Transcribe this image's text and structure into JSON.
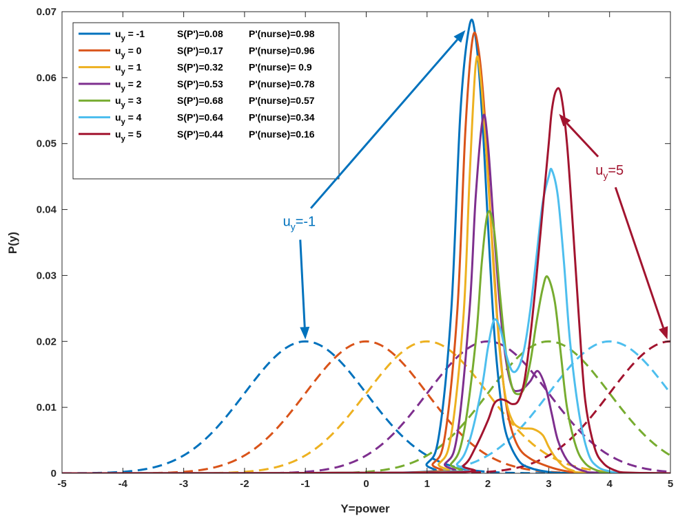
{
  "chart_data": {
    "type": "line",
    "xlabel": "Y=power",
    "ylabel": "P(y)",
    "xlim": [
      -5,
      5
    ],
    "ylim": [
      0,
      0.07
    ],
    "xticks": [
      "-5",
      "-4",
      "-3",
      "-2",
      "-1",
      "0",
      "1",
      "2",
      "3",
      "4",
      "5"
    ],
    "yticks": [
      "0",
      "0.01",
      "0.02",
      "0.03",
      "0.04",
      "0.05",
      "0.06",
      "0.07"
    ],
    "legend_placement": "top-left",
    "series": [
      {
        "name": "u_y = -1",
        "u": -1,
        "sp": "S(P')=0.08",
        "pn": "P'(nurse)=0.98",
        "color": "#0072BD",
        "x": [
          -5,
          0.6,
          1.0,
          1.2,
          1.4,
          1.55,
          1.7,
          1.8,
          1.9,
          2.0,
          2.1,
          2.2,
          2.3,
          2.5,
          2.7,
          3.0,
          3.3,
          5
        ],
        "y": [
          0,
          0.0001,
          0.0015,
          0.006,
          0.025,
          0.055,
          0.068,
          0.066,
          0.055,
          0.038,
          0.022,
          0.012,
          0.006,
          0.002,
          0.0008,
          0.0002,
          5e-05,
          0
        ]
      },
      {
        "name": "u_y = 0",
        "u": 0,
        "sp": "S(P')=0.17",
        "pn": "P'(nurse)=0.96",
        "color": "#D95319",
        "x": [
          -5,
          0.7,
          1.1,
          1.3,
          1.5,
          1.63,
          1.75,
          1.85,
          1.95,
          2.05,
          2.15,
          2.25,
          2.35,
          2.5,
          2.7,
          3.0,
          3.3,
          3.6,
          5
        ],
        "y": [
          0,
          0.0001,
          0.0015,
          0.006,
          0.025,
          0.052,
          0.066,
          0.064,
          0.054,
          0.038,
          0.024,
          0.014,
          0.008,
          0.004,
          0.0022,
          0.001,
          0.0003,
          0.0001,
          0
        ]
      },
      {
        "name": "u_y = 1",
        "u": 1,
        "sp": "S(P')=0.32",
        "pn": "P'(nurse)= 0.9",
        "color": "#EDB120",
        "x": [
          -5,
          0.8,
          1.2,
          1.4,
          1.6,
          1.7,
          1.8,
          1.88,
          2.0,
          2.1,
          2.2,
          2.3,
          2.4,
          2.5,
          2.6,
          2.75,
          2.9,
          3.0,
          3.1,
          3.25,
          3.4,
          3.6,
          5
        ],
        "y": [
          0,
          0.0001,
          0.0015,
          0.006,
          0.024,
          0.045,
          0.062,
          0.06,
          0.045,
          0.03,
          0.018,
          0.011,
          0.008,
          0.007,
          0.0068,
          0.0067,
          0.0058,
          0.004,
          0.0025,
          0.001,
          0.0004,
          0.0001,
          0
        ]
      },
      {
        "name": "u_y = 2",
        "u": 2,
        "sp": "S(P')=0.53",
        "pn": "P'(nurse)=0.78",
        "color": "#7E2F8E",
        "x": [
          -5,
          0.9,
          1.3,
          1.5,
          1.7,
          1.8,
          1.92,
          2.0,
          2.1,
          2.2,
          2.3,
          2.4,
          2.5,
          2.6,
          2.7,
          2.82,
          2.95,
          3.05,
          3.15,
          3.3,
          3.45,
          3.6,
          3.8,
          5
        ],
        "y": [
          0,
          0.0001,
          0.0015,
          0.006,
          0.025,
          0.042,
          0.054,
          0.05,
          0.037,
          0.025,
          0.017,
          0.013,
          0.0125,
          0.013,
          0.014,
          0.0155,
          0.013,
          0.009,
          0.005,
          0.002,
          0.0008,
          0.0003,
          0.0001,
          0
        ]
      },
      {
        "name": "u_y = 3",
        "u": 3,
        "sp": "S(P')=0.68",
        "pn": "P'(nurse)=0.57",
        "color": "#77AC30",
        "x": [
          -5,
          1.0,
          1.4,
          1.6,
          1.8,
          1.9,
          2.0,
          2.1,
          2.2,
          2.3,
          2.4,
          2.5,
          2.6,
          2.7,
          2.8,
          2.9,
          2.98,
          3.1,
          3.2,
          3.3,
          3.45,
          3.6,
          3.8,
          4.0,
          5
        ],
        "y": [
          0,
          0.0001,
          0.0015,
          0.006,
          0.02,
          0.032,
          0.0395,
          0.037,
          0.027,
          0.018,
          0.013,
          0.012,
          0.013,
          0.017,
          0.023,
          0.028,
          0.0298,
          0.026,
          0.018,
          0.01,
          0.004,
          0.0015,
          0.0004,
          0.0001,
          0
        ]
      },
      {
        "name": "u_y = 4",
        "u": 4,
        "sp": "S(P')=0.64",
        "pn": "P'(nurse)=0.34",
        "color": "#4DBEEE",
        "x": [
          -5,
          1.1,
          1.5,
          1.7,
          1.9,
          2.0,
          2.1,
          2.2,
          2.3,
          2.4,
          2.5,
          2.6,
          2.7,
          2.8,
          2.9,
          3.0,
          3.05,
          3.15,
          3.25,
          3.35,
          3.5,
          3.65,
          3.8,
          4.0,
          4.2,
          5
        ],
        "y": [
          0,
          0.0001,
          0.0015,
          0.005,
          0.013,
          0.019,
          0.0232,
          0.022,
          0.018,
          0.0155,
          0.016,
          0.019,
          0.025,
          0.033,
          0.041,
          0.045,
          0.046,
          0.042,
          0.032,
          0.02,
          0.009,
          0.003,
          0.001,
          0.0003,
          0.0001,
          0
        ]
      },
      {
        "name": "u_y = 5",
        "u": 5,
        "sp": "S(P')=0.44",
        "pn": "P'(nurse)=0.16",
        "color": "#A2142F",
        "x": [
          -5,
          1.2,
          1.6,
          1.8,
          2.0,
          2.1,
          2.2,
          2.3,
          2.4,
          2.5,
          2.6,
          2.7,
          2.8,
          2.9,
          3.0,
          3.05,
          3.12,
          3.2,
          3.3,
          3.4,
          3.5,
          3.6,
          3.75,
          3.9,
          4.1,
          4.3,
          5
        ],
        "y": [
          0,
          0.0001,
          0.0012,
          0.004,
          0.008,
          0.0105,
          0.0112,
          0.011,
          0.0105,
          0.011,
          0.014,
          0.021,
          0.03,
          0.04,
          0.05,
          0.055,
          0.058,
          0.0575,
          0.05,
          0.037,
          0.023,
          0.011,
          0.004,
          0.0015,
          0.0004,
          0.0001,
          0
        ]
      }
    ],
    "prior_series": {
      "style": "dashed",
      "sigma": 1,
      "peak": 0.02,
      "note": "dashed curves are Gaussian priors centered at each u_y in the matching color"
    },
    "annotations": [
      {
        "text_main": "u",
        "text_sub": "y",
        "text_rest": "=-1",
        "color": "#0072BD",
        "text_at": [
          -1.1,
          0.0375
        ],
        "arrows_to": [
          [
            1.63,
            0.0672
          ],
          [
            -1.0,
            0.0203
          ]
        ]
      },
      {
        "text_main": "u",
        "text_sub": "y",
        "text_rest": "=5",
        "color": "#A2142F",
        "text_at": [
          4.0,
          0.0453
        ],
        "arrows_to": [
          [
            3.17,
            0.0545
          ],
          [
            4.95,
            0.0203
          ]
        ]
      }
    ]
  }
}
